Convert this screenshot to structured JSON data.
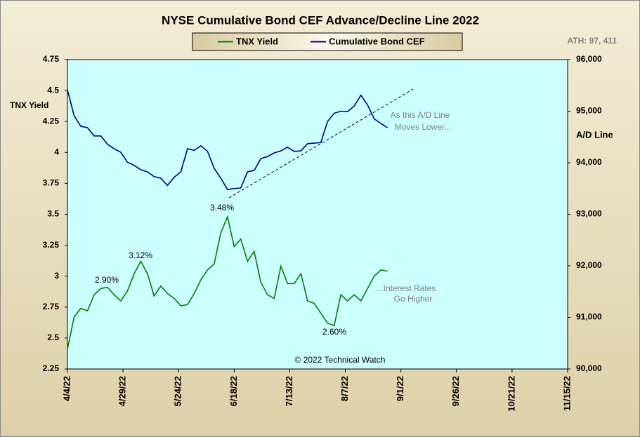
{
  "chart_data": {
    "type": "line",
    "title": "NYSE Cumulative  Bond CEF Advance/Decline  Line 2022",
    "subtitle": "ATH: 97, 411",
    "ylabel": "TNX  Yield",
    "y2label": "A/D Line",
    "x": [
      "4/4/22",
      "4/7/22",
      "4/10/22",
      "4/13/22",
      "4/16/22",
      "4/19/22",
      "4/22/22",
      "4/25/22",
      "4/28/22",
      "5/1/22",
      "5/4/22",
      "5/7/22",
      "5/10/22",
      "5/13/22",
      "5/16/22",
      "5/19/22",
      "5/22/22",
      "5/25/22",
      "5/28/22",
      "5/31/22",
      "6/3/22",
      "6/6/22",
      "6/9/22",
      "6/12/22",
      "6/15/22",
      "6/18/22",
      "6/21/22",
      "6/24/22",
      "6/27/22",
      "6/30/22",
      "7/3/22",
      "7/6/22",
      "7/9/22",
      "7/12/22",
      "7/15/22",
      "7/18/22",
      "7/21/22",
      "7/24/22",
      "7/27/22",
      "7/30/22",
      "8/2/22",
      "8/5/22",
      "8/8/22",
      "8/11/22",
      "8/14/22",
      "8/17/22",
      "8/20/22",
      "8/23/22",
      "8/26/22"
    ],
    "series": [
      {
        "name": "TNX Yield",
        "color": "#008000",
        "axis": "y",
        "values": [
          2.41,
          2.67,
          2.74,
          2.72,
          2.85,
          2.9,
          2.91,
          2.85,
          2.8,
          2.88,
          3.02,
          3.12,
          3.02,
          2.84,
          2.92,
          2.86,
          2.82,
          2.76,
          2.77,
          2.86,
          2.97,
          3.05,
          3.1,
          3.35,
          3.48,
          3.24,
          3.3,
          3.12,
          3.2,
          2.95,
          2.85,
          2.82,
          3.08,
          2.94,
          2.94,
          3.02,
          2.8,
          2.78,
          2.7,
          2.62,
          2.6,
          2.85,
          2.8,
          2.85,
          2.8,
          2.9,
          3.0,
          3.05,
          3.04
        ]
      },
      {
        "name": "Cumulative Bond CEF",
        "color": "#000080",
        "axis": "y2",
        "values": [
          95415,
          94912,
          94707,
          94680,
          94520,
          94520,
          94360,
          94270,
          94204,
          94010,
          93950,
          93864,
          93823,
          93730,
          93700,
          93560,
          93720,
          93823,
          94272,
          94240,
          94330,
          94220,
          93891,
          93700,
          93480,
          93500,
          93510,
          93823,
          93850,
          94080,
          94120,
          94190,
          94230,
          94300,
          94220,
          94230,
          94370,
          94380,
          94390,
          94800,
          94960,
          95000,
          94990,
          95100,
          95310,
          95120,
          94850,
          94760,
          94680
        ]
      }
    ],
    "xlim": [
      "4/4/22",
      "11/15/22"
    ],
    "xticks": [
      "4/4/22",
      "4/29/22",
      "5/24/22",
      "6/18/22",
      "7/13/22",
      "8/7/22",
      "9/1/22",
      "9/26/22",
      "10/21/22",
      "11/15/22"
    ],
    "ylim": [
      2.25,
      4.75
    ],
    "yticks": [
      2.25,
      2.5,
      2.75,
      3,
      3.25,
      3.5,
      3.75,
      4,
      4.25,
      4.5,
      4.75
    ],
    "y2lim": [
      90000,
      96000
    ],
    "y2ticks": [
      {
        "value": 90000,
        "label": "90,000"
      },
      {
        "value": 91000,
        "label": "91,000"
      },
      {
        "value": 92000,
        "label": "92,000"
      },
      {
        "value": 93000,
        "label": "93,000"
      },
      {
        "value": 94000,
        "label": "94,000"
      },
      {
        "value": 95000,
        "label": "95,000"
      },
      {
        "value": 96000,
        "label": "96,000"
      }
    ],
    "annotations": [
      "3.48%",
      "3.12%",
      "2.90%",
      "2.60%",
      "As this A/D Line",
      "Moves Lower...",
      "...Interest Rates",
      "Go Higher",
      "© 2022 Technical Watch"
    ],
    "legend": "top",
    "plot_color": "#ccffff"
  }
}
